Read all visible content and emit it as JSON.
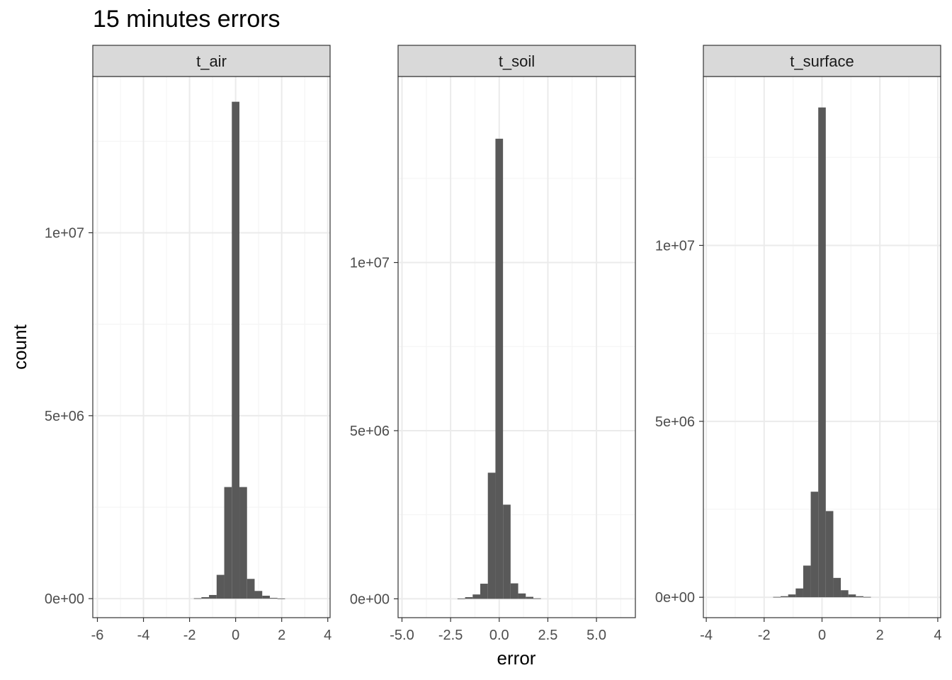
{
  "title": "15 minutes errors",
  "chart_data": {
    "type": "bar",
    "title": "15 minutes errors",
    "xlabel": "error",
    "ylabel": "count",
    "grid": true,
    "facets": [
      {
        "name": "t_air",
        "xlim": [
          -6.2,
          4.1
        ],
        "ylim": [
          -520000,
          14270000
        ],
        "x_ticks": [
          {
            "value": -6,
            "label": "-6"
          },
          {
            "value": -4,
            "label": "-4"
          },
          {
            "value": -2,
            "label": "-2"
          },
          {
            "value": 0,
            "label": "0"
          },
          {
            "value": 2,
            "label": "2"
          },
          {
            "value": 4,
            "label": "4"
          }
        ],
        "y_ticks": [
          {
            "value": 0,
            "label": "0e+00"
          },
          {
            "value": 5000000,
            "label": "5e+06"
          },
          {
            "value": 10000000,
            "label": "1e+07"
          }
        ],
        "bin_width": 0.33,
        "bins": [
          {
            "x": -1.65,
            "count": 10000
          },
          {
            "x": -1.32,
            "count": 40000
          },
          {
            "x": -0.99,
            "count": 100000
          },
          {
            "x": -0.66,
            "count": 650000
          },
          {
            "x": -0.33,
            "count": 3050000
          },
          {
            "x": 0.0,
            "count": 13580000
          },
          {
            "x": 0.33,
            "count": 3050000
          },
          {
            "x": 0.66,
            "count": 540000
          },
          {
            "x": 0.99,
            "count": 210000
          },
          {
            "x": 1.32,
            "count": 80000
          },
          {
            "x": 1.65,
            "count": 20000
          },
          {
            "x": 1.98,
            "count": 5000
          }
        ]
      },
      {
        "name": "t_soil",
        "xlim": [
          -5.2,
          7.0
        ],
        "ylim": [
          -560000,
          15530000
        ],
        "x_ticks": [
          {
            "value": -5.0,
            "label": "-5.0"
          },
          {
            "value": -2.5,
            "label": "-2.5"
          },
          {
            "value": 0.0,
            "label": "0.0"
          },
          {
            "value": 2.5,
            "label": "2.5"
          },
          {
            "value": 5.0,
            "label": "5.0"
          }
        ],
        "y_ticks": [
          {
            "value": 0,
            "label": "0e+00"
          },
          {
            "value": 5000000,
            "label": "5e+06"
          },
          {
            "value": 10000000,
            "label": "1e+07"
          }
        ],
        "bin_width": 0.39,
        "bins": [
          {
            "x": -1.95,
            "count": 10000
          },
          {
            "x": -1.56,
            "count": 50000
          },
          {
            "x": -1.17,
            "count": 130000
          },
          {
            "x": -0.78,
            "count": 450000
          },
          {
            "x": -0.39,
            "count": 3750000
          },
          {
            "x": 0.0,
            "count": 13680000
          },
          {
            "x": 0.39,
            "count": 2800000
          },
          {
            "x": 0.78,
            "count": 460000
          },
          {
            "x": 1.17,
            "count": 160000
          },
          {
            "x": 1.56,
            "count": 60000
          },
          {
            "x": 1.95,
            "count": 15000
          }
        ]
      },
      {
        "name": "t_surface",
        "xlim": [
          -4.1,
          4.1
        ],
        "ylim": [
          -580000,
          14800000
        ],
        "x_ticks": [
          {
            "value": -4,
            "label": "-4"
          },
          {
            "value": -2,
            "label": "-2"
          },
          {
            "value": 0,
            "label": "0"
          },
          {
            "value": 2,
            "label": "2"
          },
          {
            "value": 4,
            "label": "4"
          }
        ],
        "y_ticks": [
          {
            "value": 0,
            "label": "0e+00"
          },
          {
            "value": 5000000,
            "label": "5e+06"
          },
          {
            "value": 10000000,
            "label": "1e+07"
          }
        ],
        "bin_width": 0.26,
        "bins": [
          {
            "x": -1.56,
            "count": 10000
          },
          {
            "x": -1.3,
            "count": 30000
          },
          {
            "x": -1.04,
            "count": 80000
          },
          {
            "x": -0.78,
            "count": 250000
          },
          {
            "x": -0.52,
            "count": 900000
          },
          {
            "x": -0.26,
            "count": 3000000
          },
          {
            "x": 0.0,
            "count": 13920000
          },
          {
            "x": 0.26,
            "count": 2450000
          },
          {
            "x": 0.52,
            "count": 550000
          },
          {
            "x": 0.78,
            "count": 200000
          },
          {
            "x": 1.04,
            "count": 80000
          },
          {
            "x": 1.3,
            "count": 30000
          },
          {
            "x": 1.56,
            "count": 10000
          }
        ]
      }
    ]
  },
  "colors": {
    "bar": "#595959",
    "grid_major": "#ebebeb",
    "grid_minor": "#f5f5f5",
    "panel_border": "#333333",
    "strip_fill": "#d9d9d9",
    "tick_text": "#4d4d4d"
  }
}
